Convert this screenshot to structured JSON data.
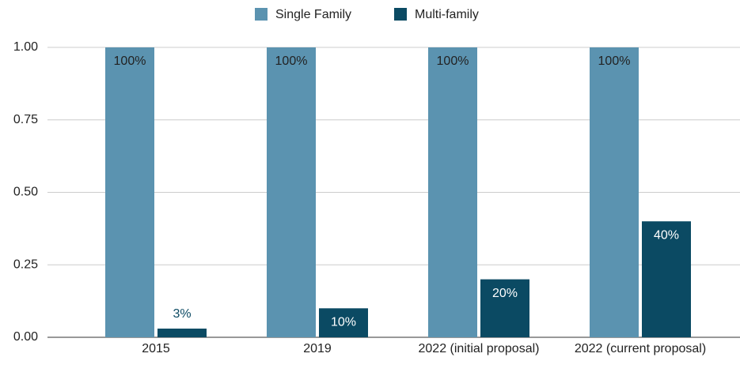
{
  "chart_data": {
    "type": "bar",
    "categories": [
      "2015",
      "2019",
      "2022 (initial proposal)",
      "2022 (current proposal)"
    ],
    "series": [
      {
        "name": "Single Family",
        "color": "#5b93b0",
        "values": [
          1,
          1,
          1,
          1
        ],
        "value_labels": [
          "100%",
          "100%",
          "100%",
          "100%"
        ]
      },
      {
        "name": "Multi-family",
        "color": "#0b4a63",
        "values": [
          0.03,
          0.1,
          0.2,
          0.4
        ],
        "value_labels": [
          "3%",
          "10%",
          "20%",
          "40%"
        ]
      }
    ],
    "ylim": [
      0,
      1
    ],
    "yticks": [
      {
        "value": 0,
        "label": "0.00"
      },
      0.25,
      {
        "value": 0.5,
        "label": "0.50"
      },
      0.75,
      {
        "value": 1,
        "label": "1.00"
      }
    ],
    "grid": true,
    "legend": "top"
  }
}
